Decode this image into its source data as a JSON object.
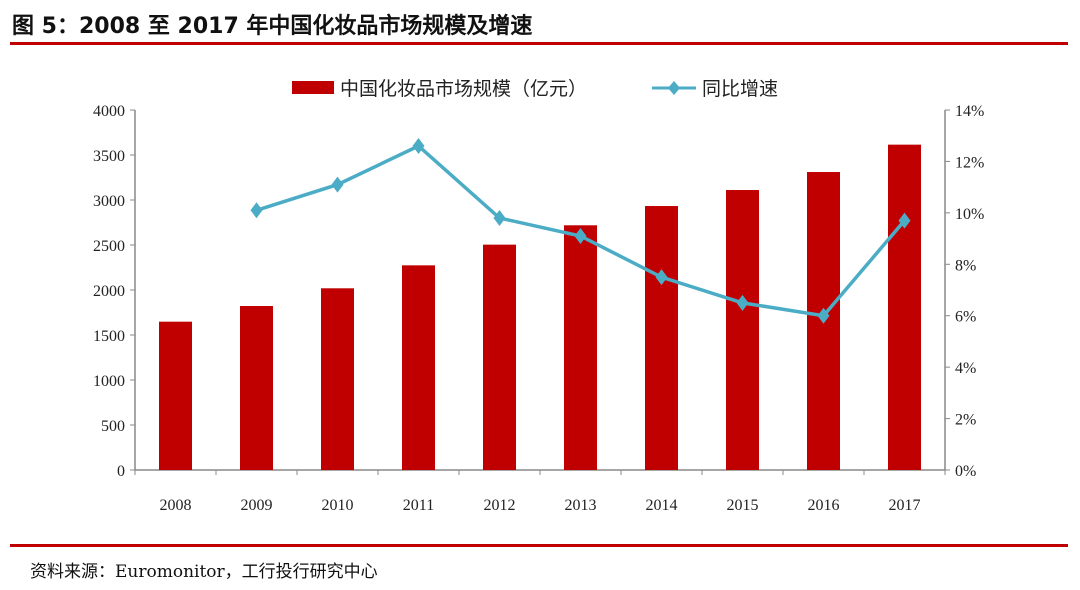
{
  "title": "图 5：2008 至 2017 年中国化妆品市场规模及增速",
  "source": "资料来源：Euromonitor，工行投行研究中心",
  "colors": {
    "bar": "#c00000",
    "line": "#4bacc6",
    "rule": "#c00000"
  },
  "chart_data": {
    "type": "bar+line",
    "categories": [
      "2008",
      "2009",
      "2010",
      "2011",
      "2012",
      "2013",
      "2014",
      "2015",
      "2016",
      "2017"
    ],
    "series": [
      {
        "name": "中国化妆品市场规模（亿元）",
        "type": "bar",
        "axis": "left",
        "values": [
          1648,
          1822,
          2019,
          2274,
          2504,
          2719,
          2933,
          3111,
          3311,
          3615
        ]
      },
      {
        "name": "同比增速",
        "type": "line",
        "axis": "right",
        "marker": "diamond",
        "values": [
          null,
          10.1,
          11.1,
          12.6,
          9.8,
          9.1,
          7.5,
          6.5,
          6.0,
          9.7
        ]
      }
    ],
    "left_axis": {
      "range": [
        0,
        4000
      ],
      "ticks": [
        "0",
        "500",
        "1000",
        "1500",
        "2000",
        "2500",
        "3000",
        "3500",
        "4000"
      ]
    },
    "right_axis": {
      "range": [
        0,
        14
      ],
      "ticks": [
        "0%",
        "2%",
        "4%",
        "6%",
        "8%",
        "10%",
        "12%",
        "14%"
      ]
    },
    "legend_position": "top",
    "grid": false
  }
}
